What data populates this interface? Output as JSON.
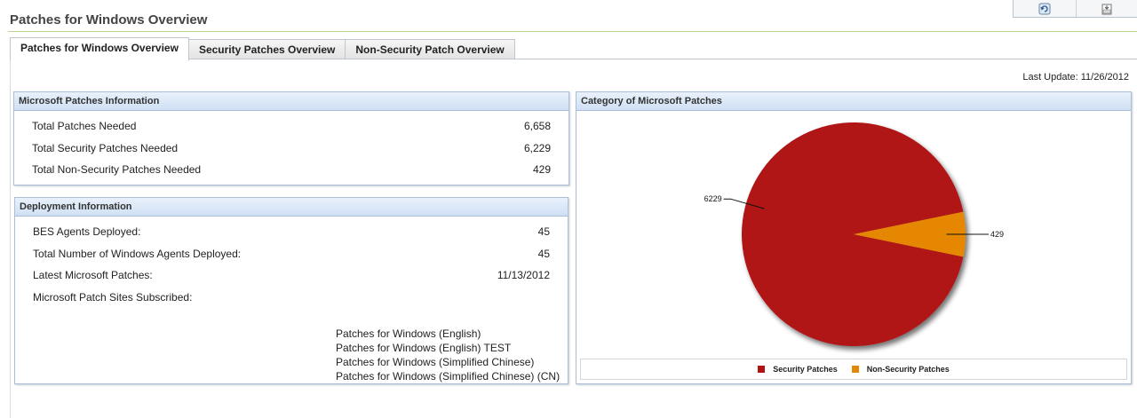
{
  "page": {
    "title": "Patches for Windows Overview"
  },
  "tabs": [
    {
      "label": "Patches for Windows Overview"
    },
    {
      "label": "Security Patches Overview"
    },
    {
      "label": "Non-Security Patch Overview"
    }
  ],
  "last_update": "Last Update: 11/26/2012",
  "ms_patches": {
    "header": "Microsoft Patches Information",
    "rows": [
      {
        "label": "Total Patches Needed",
        "value": "6,658"
      },
      {
        "label": "Total Security Patches Needed",
        "value": "6,229"
      },
      {
        "label": "Total Non-Security Patches Needed",
        "value": "429"
      }
    ]
  },
  "deployment": {
    "header": "Deployment Information",
    "rows": [
      {
        "label": "BES Agents Deployed:",
        "value": "45"
      },
      {
        "label": "Total Number of Windows Agents Deployed:",
        "value": "45"
      },
      {
        "label": "Latest Microsoft Patches:",
        "value": "11/13/2012"
      },
      {
        "label": "Microsoft Patch Sites Subscribed:",
        "value": ""
      }
    ],
    "sites": [
      "Patches for Windows (English)",
      "Patches for Windows (English) TEST",
      "Patches for Windows (Simplified Chinese)",
      "Patches for Windows (Simplified Chinese) (CN)"
    ]
  },
  "category": {
    "header": "Category of Microsoft Patches"
  },
  "chart_data": {
    "type": "pie",
    "slices": [
      {
        "label": "Security Patches",
        "value": 6229,
        "color": "#b01216"
      },
      {
        "label": "Non-Security Patches",
        "value": 429,
        "color": "#e58700"
      }
    ],
    "data_labels": [
      "6229",
      "429"
    ],
    "legend_position": "bottom"
  },
  "icons": {
    "toolbar": [
      "refresh-icon",
      "export-icon"
    ]
  }
}
